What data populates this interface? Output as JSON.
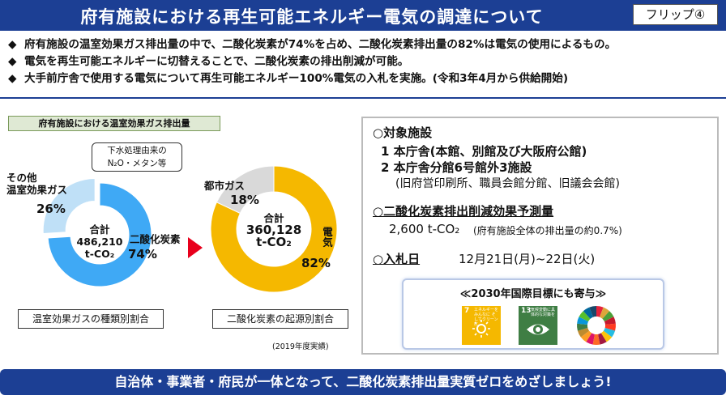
{
  "header": {
    "title": "府有施設における再生可能エネルギー電気の調達について",
    "flip": "フリップ④"
  },
  "bullets": [
    "府有施設の温室効果ガス排出量の中で、二酸化炭素が74%を占め、二酸化炭素排出量の82%は電気の使用によるもの。",
    "電気を再生可能エネルギーに切替えることで、二酸化炭素の排出削減が可能。",
    "大手前庁舎で使用する電気について再生可能エネルギー100%電気の入札を実施。(令和3年4月から供給開始)"
  ],
  "bullet_marker": "◆",
  "left_panel": {
    "label": "府有施設における温室効果ガス排出量",
    "callout": [
      "下水処理由来の",
      "N₂O・メタン等"
    ],
    "chart1": {
      "other_label": [
        "その他",
        "温室効果ガス"
      ],
      "other_pct": "26%",
      "co2_label": "二酸化炭素",
      "co2_pct": "74%",
      "center": [
        "合計",
        "486,210",
        "t-CO₂"
      ],
      "bottom_label": "温室効果ガスの種類別割合"
    },
    "chart2": {
      "gas_label": "都市ガス",
      "gas_pct": "18%",
      "elec_label": "電気",
      "elec_pct": "82%",
      "center": [
        "合計",
        "360,128",
        "t-CO₂"
      ],
      "bottom_label": "二酸化炭素の起源別割合"
    },
    "year_note": "(2019年度実績)"
  },
  "chart_data": [
    {
      "type": "pie",
      "categories": [
        "二酸化炭素",
        "その他温室効果ガス"
      ],
      "values": [
        74,
        26
      ],
      "title": "温室効果ガスの種類別割合",
      "total": "486,210 t-CO₂"
    },
    {
      "type": "pie",
      "categories": [
        "電気",
        "都市ガス"
      ],
      "values": [
        82,
        18
      ],
      "title": "二酸化炭素の起源別割合",
      "total": "360,128 t-CO₂"
    }
  ],
  "right_panel": {
    "targets_heading": "○対象施設",
    "target1": "1 本庁舎(本館、別館及び大阪府公館)",
    "target2": "2 本庁舎分館6号館外3施設",
    "target2_detail": "(旧府営印刷所、職員会館分館、旧議会会館)",
    "effect_heading": "○二酸化炭素排出削減効果予測量",
    "effect_value": "2,600 t-CO₂",
    "effect_note": "(府有施設全体の排出量の約0.7%)",
    "bid_heading": "○入札日",
    "bid_date": "12月21日(月)~22日(火)",
    "sdg_title": "≪2030年国際目標にも寄与≫",
    "sdg7_num": "7",
    "sdg7_text": "エネルギーをみんなに そしてクリーンに",
    "sdg13_num": "13",
    "sdg13_text": "気候変動に具体的な対策を"
  },
  "footer": "自治体・事業者・府民が一体となって、二酸化炭素排出量実質ゼロをめざしましょう!",
  "colors": {
    "header_bg": "#1c3f94",
    "co2_blue": "#3fa9f5",
    "other_lightblue": "#bfe0f7",
    "electric_orange": "#f5b800",
    "gas_gray": "#d9d9d9",
    "arrow_red": "#e8001c",
    "sdg7": "#f5b800",
    "sdg13": "#3f7e44"
  },
  "icons": [
    "diamond-bullet-icon",
    "right-arrow-icon",
    "sun-icon",
    "eye-globe-icon",
    "sdg-wheel-icon"
  ]
}
